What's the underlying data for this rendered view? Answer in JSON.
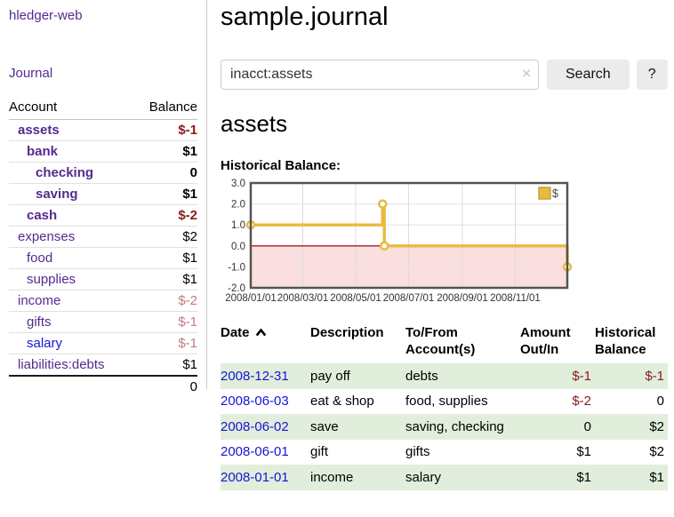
{
  "colors": {
    "link_purple": "#552a8e",
    "link_blue": "#1515d6",
    "negative": "#8b1a1a",
    "negative_muted": "#c17c80",
    "row_highlight_green": "#e1eedb",
    "chart_series_gold": "#e8bb40",
    "chart_negative_region_pink": "#fbdede",
    "chart_zero_line_red": "#9e2020"
  },
  "sidebar": {
    "app_title": "hledger-web",
    "nav": {
      "journal": "Journal"
    },
    "accounts_table": {
      "headers": {
        "account": "Account",
        "balance": "Balance"
      },
      "rows": [
        {
          "name": "assets",
          "depth": 1,
          "bold": true,
          "balance": "$-1",
          "balance_tone": "negative"
        },
        {
          "name": "bank",
          "depth": 2,
          "bold": true,
          "balance": "$1",
          "balance_tone": "normal"
        },
        {
          "name": "checking",
          "depth": 3,
          "bold": true,
          "balance": "0",
          "balance_tone": "normal"
        },
        {
          "name": "saving",
          "depth": 3,
          "bold": true,
          "balance": "$1",
          "balance_tone": "normal"
        },
        {
          "name": "cash",
          "depth": 2,
          "bold": true,
          "balance": "$-2",
          "balance_tone": "negative"
        },
        {
          "name": "expenses",
          "depth": 1,
          "bold": false,
          "balance": "$2",
          "balance_tone": "normal"
        },
        {
          "name": "food",
          "depth": 2,
          "bold": false,
          "balance": "$1",
          "balance_tone": "normal"
        },
        {
          "name": "supplies",
          "depth": 2,
          "bold": false,
          "balance": "$1",
          "balance_tone": "normal"
        },
        {
          "name": "income",
          "depth": 1,
          "bold": false,
          "balance": "$-2",
          "balance_tone": "negative-muted"
        },
        {
          "name": "gifts",
          "depth": 2,
          "bold": false,
          "balance": "$-1",
          "balance_tone": "negative-muted"
        },
        {
          "name": "salary",
          "depth": 2,
          "bold": false,
          "balance": "$-1",
          "balance_tone": "negative-muted",
          "link_tone": "unvisited"
        },
        {
          "name": "liabilities:debts",
          "depth": 1,
          "bold": false,
          "balance": "$1",
          "balance_tone": "normal"
        }
      ],
      "total": "0"
    }
  },
  "main": {
    "title": "sample.journal",
    "search": {
      "value": "inacct:assets",
      "clear_icon": "×",
      "search_button": "Search",
      "help_button": "?"
    },
    "account_heading": "assets",
    "chart_heading": "Historical Balance:"
  },
  "chart_data": {
    "type": "line",
    "step": true,
    "title": "Historical Balance",
    "x": [
      "2008-01-01",
      "2008-06-01",
      "2008-06-03",
      "2008-12-31"
    ],
    "values": [
      1,
      2,
      0,
      -1
    ],
    "xlim": [
      "2008-01-01",
      "2008-12-31"
    ],
    "ylim": [
      -2,
      3
    ],
    "y_ticks": [
      3,
      2,
      1,
      0,
      -1,
      -2
    ],
    "x_tick_labels": [
      "2008/01/01",
      "2008/03/01",
      "2008/05/01",
      "2008/07/01",
      "2008/09/01",
      "2008/11/01"
    ],
    "legend": [
      {
        "label": "$",
        "color": "#e8bb40"
      }
    ],
    "legend_position": "top-right",
    "grid": true,
    "series_color": "#e8bb40",
    "negative_region_color": "#fbdede",
    "zero_line_color": "#9e2020"
  },
  "register": {
    "columns": [
      {
        "label": "Date",
        "sort": "ascending"
      },
      {
        "label": "Description"
      },
      {
        "label": "To/From Account(s)"
      },
      {
        "label": "Amount Out/In",
        "align": "right"
      },
      {
        "label": "Historical Balance",
        "align": "right"
      }
    ],
    "rows": [
      {
        "date": "2008-12-31",
        "description": "pay off",
        "accounts": "debts",
        "amount": "$-1",
        "amount_negative": true,
        "balance": "$-1",
        "balance_negative": true,
        "highlighted": true
      },
      {
        "date": "2008-06-03",
        "description": "eat & shop",
        "accounts": "food, supplies",
        "amount": "$-2",
        "amount_negative": true,
        "balance": "0",
        "balance_negative": false,
        "highlighted": false
      },
      {
        "date": "2008-06-02",
        "description": "save",
        "accounts": "saving, checking",
        "amount": "0",
        "amount_negative": false,
        "balance": "$2",
        "balance_negative": false,
        "highlighted": true
      },
      {
        "date": "2008-06-01",
        "description": "gift",
        "accounts": "gifts",
        "amount": "$1",
        "amount_negative": false,
        "balance": "$2",
        "balance_negative": false,
        "highlighted": false
      },
      {
        "date": "2008-01-01",
        "description": "income",
        "accounts": "salary",
        "amount": "$1",
        "amount_negative": false,
        "balance": "$1",
        "balance_negative": false,
        "highlighted": true
      }
    ]
  }
}
